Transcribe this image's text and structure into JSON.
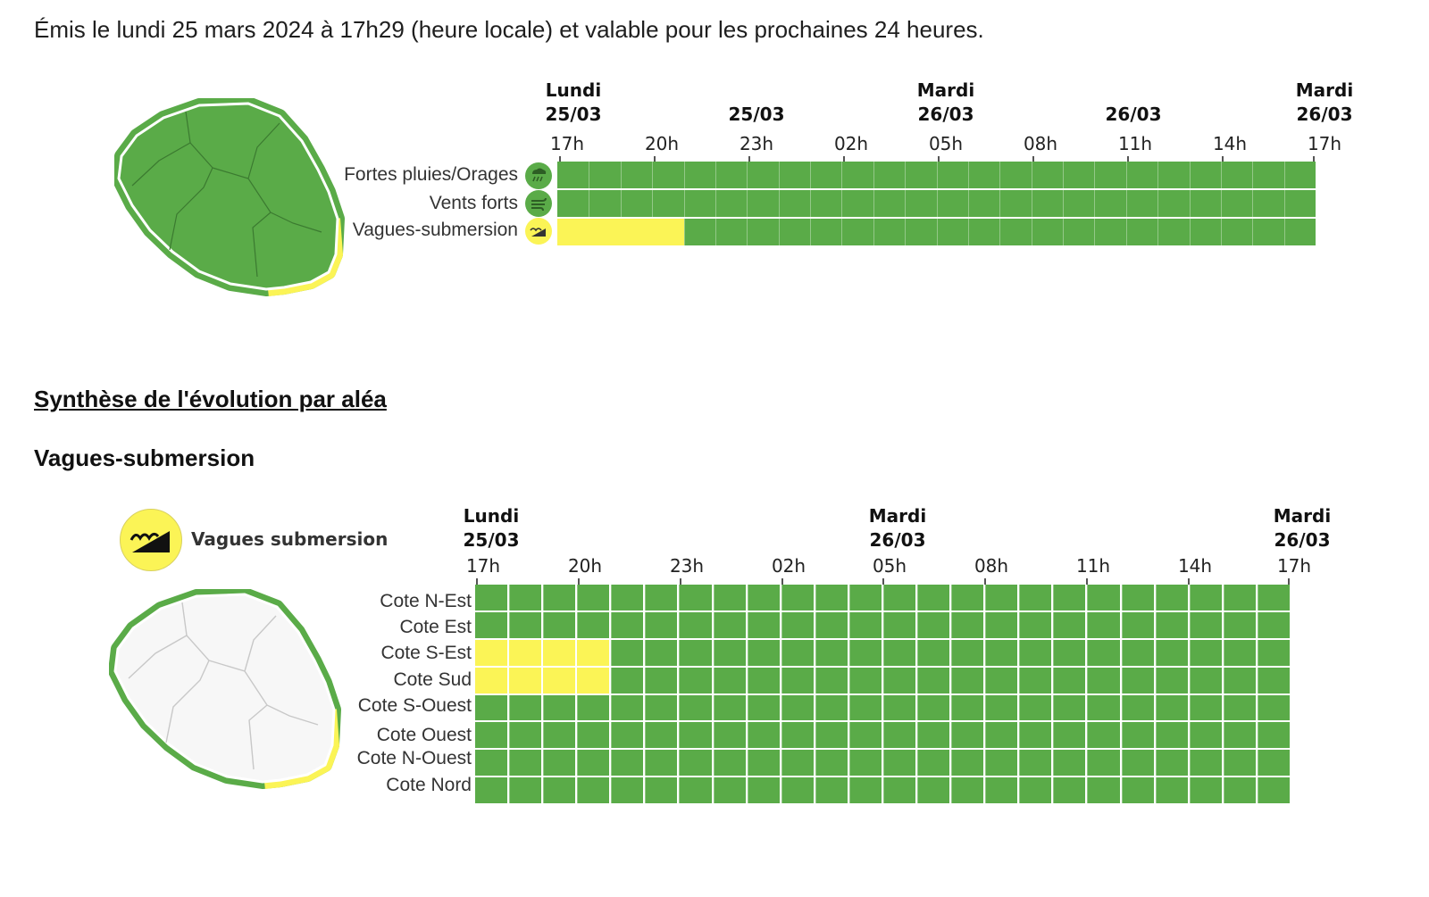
{
  "header": {
    "issued": "Émis le lundi 25 mars 2024 à 17h29 (heure locale) et valable pour les prochaines 24 heures."
  },
  "colors": {
    "green": "#5aab48",
    "yellow": "#fbf456",
    "white": "#ffffff"
  },
  "overview": {
    "days": [
      {
        "name": "Lundi",
        "date": "25/03"
      },
      {
        "name": "",
        "date": "25/03"
      },
      {
        "name": "Mardi",
        "date": "26/03"
      },
      {
        "name": "",
        "date": "26/03"
      },
      {
        "name": "Mardi",
        "date": "26/03"
      }
    ],
    "hours": [
      "17h",
      "20h",
      "23h",
      "02h",
      "05h",
      "08h",
      "11h",
      "14h",
      "17h"
    ],
    "rows": [
      {
        "label": "Fortes pluies/Orages",
        "icon": "rain-storm-icon",
        "yellow_slots": 0
      },
      {
        "label": "Vents forts",
        "icon": "wind-icon",
        "yellow_slots": 0
      },
      {
        "label": "Vagues-submersion",
        "icon": "wave-icon",
        "yellow_slots": 4
      }
    ],
    "slots": 24
  },
  "synthesis": {
    "title": "Synthèse de l'évolution par aléa",
    "hazard_title": "Vagues-submersion",
    "legend_label": "Vagues submersion",
    "days": [
      {
        "name": "Lundi",
        "date": "25/03"
      },
      {
        "name": "Mardi",
        "date": "26/03"
      },
      {
        "name": "Mardi",
        "date": "26/03"
      }
    ],
    "hours": [
      "17h",
      "20h",
      "23h",
      "02h",
      "05h",
      "08h",
      "11h",
      "14h",
      "17h"
    ],
    "rows": [
      {
        "label": "Cote N-Est",
        "yellow_slots": 0
      },
      {
        "label": "Cote Est",
        "yellow_slots": 0
      },
      {
        "label": "Cote S-Est",
        "yellow_slots": 4
      },
      {
        "label": "Cote Sud",
        "yellow_slots": 4
      },
      {
        "label": "Cote S-Ouest",
        "yellow_slots": 0
      },
      {
        "label": "Cote Ouest",
        "yellow_slots": 0
      },
      {
        "label": "Cote N-Ouest",
        "yellow_slots": 0
      },
      {
        "label": "Cote Nord",
        "yellow_slots": 0
      }
    ],
    "slots": 24
  }
}
